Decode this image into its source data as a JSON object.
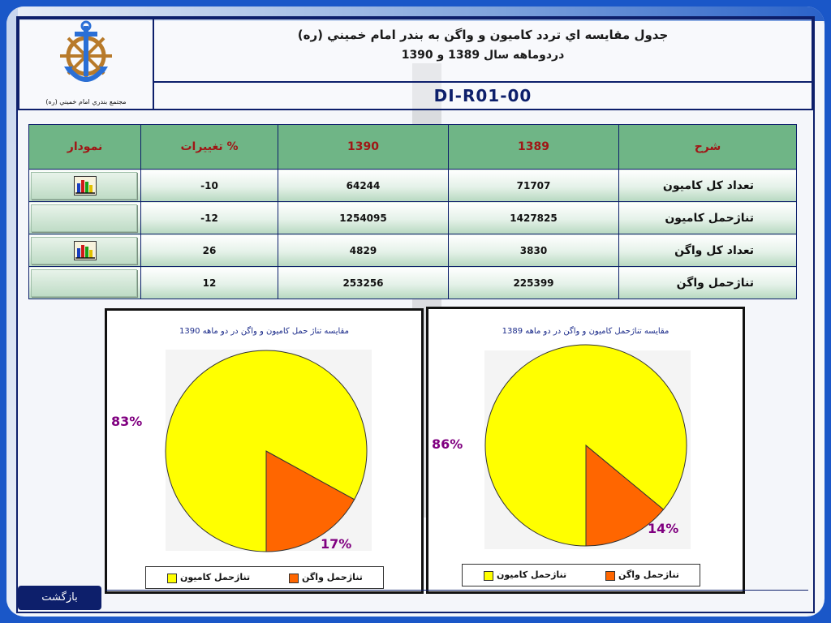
{
  "header": {
    "title_line1": "جدول مقايسه اي تردد کاميون و واگن به بندر امام خميني (ره)",
    "title_line2": "دردوماهه سال 1389 و 1390",
    "code": "DI-R01-00",
    "logo_caption": "مجتمع بندري امام خميني (ره)"
  },
  "table": {
    "headers": {
      "desc": "شرح",
      "y1389": "1389",
      "y1390": "1390",
      "change": "% تغييرات",
      "chart": "نمودار"
    },
    "rows": [
      {
        "desc": "تعداد کل کاميون",
        "y1389": "71707",
        "y1390": "64244",
        "change": "-10",
        "has_chart": true
      },
      {
        "desc": "تناژحمل کاميون",
        "y1389": "1427825",
        "y1390": "1254095",
        "change": "-12",
        "has_chart": false
      },
      {
        "desc": "تعداد کل واگن",
        "y1389": "3830",
        "y1390": "4829",
        "change": "26",
        "has_chart": true
      },
      {
        "desc": "تناژحمل واگن",
        "y1389": "225399",
        "y1390": "253256",
        "change": "12",
        "has_chart": false
      }
    ]
  },
  "colors": {
    "truck": "#ffff00",
    "wagon": "#ff6600",
    "label": "#800080",
    "header_bg": "#6fb586"
  },
  "icons": [
    "bar-chart-icon"
  ],
  "chart_data": [
    {
      "type": "pie",
      "title": "مقايسه تناژحمل کاميون و واگن در دو ماهه 1389",
      "categories": [
        "تناژحمل کاميون",
        "تناژحمل واگن"
      ],
      "values": [
        86,
        14
      ],
      "labels": [
        "86%",
        "14%"
      ],
      "legend": "bottom"
    },
    {
      "type": "pie",
      "title": "مقايسه تناژ حمل کاميون و واگن در دو ماهه  1390",
      "categories": [
        "تناژحمل کاميون",
        "تناژحمل واگن"
      ],
      "values": [
        83,
        17
      ],
      "labels": [
        "83%",
        "17%"
      ],
      "legend": "bottom"
    }
  ],
  "footer": {
    "back_label": "بازگشت"
  }
}
